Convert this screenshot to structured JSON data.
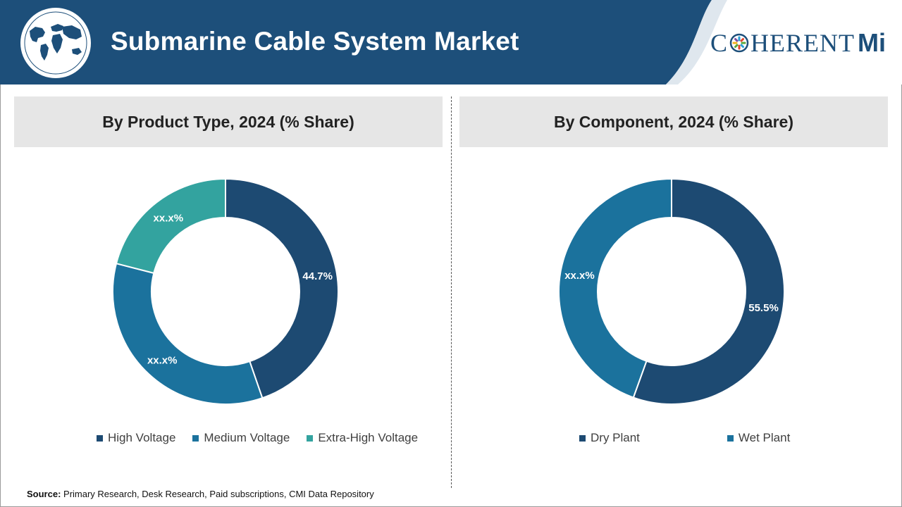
{
  "header": {
    "title": "Submarine Cable System Market",
    "logo_left": "C",
    "logo_right": "HERENT",
    "logo_mi": "Mi",
    "colors": {
      "banner": "#1d4f7a",
      "text": "#ffffff"
    }
  },
  "source": {
    "label": "Source:",
    "text": "Primary Research, Desk Research, Paid subscriptions, CMI Data Repository"
  },
  "chart_data": [
    {
      "type": "pie",
      "title": "By Product Type, 2024 (% Share)",
      "categories": [
        "High Voltage",
        "Medium Voltage",
        "Extra-High Voltage"
      ],
      "values": [
        44.7,
        34.3,
        21.0
      ],
      "labels": [
        "44.7%",
        "xx.x%",
        "xx.x%"
      ],
      "colors": [
        "#1d4a72",
        "#1b729d",
        "#33a39f"
      ],
      "legend": "bottom"
    },
    {
      "type": "pie",
      "title": "By Component, 2024 (% Share)",
      "categories": [
        "Dry Plant",
        "Wet Plant"
      ],
      "values": [
        55.5,
        44.5
      ],
      "labels": [
        "55.5%",
        "xx.x%"
      ],
      "colors": [
        "#1d4a72",
        "#1b729d"
      ],
      "legend": "bottom"
    }
  ]
}
